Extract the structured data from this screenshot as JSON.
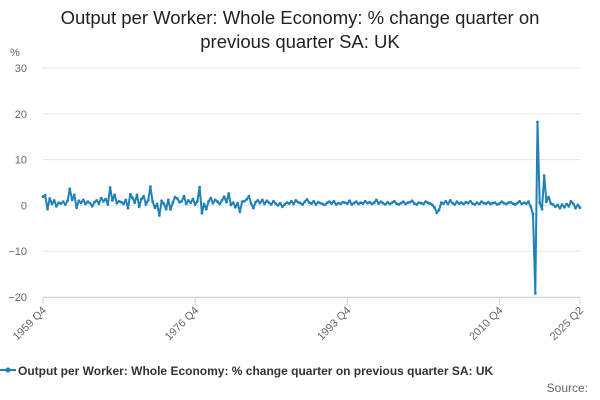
{
  "title_lines": [
    "Output per Worker: Whole Economy: % change quarter on",
    "previous quarter SA: UK"
  ],
  "source_label": "Source:",
  "colors": {
    "series": "#1f81b8",
    "grid": "#e6e6e6",
    "axis": "#ccd6eb",
    "text": "#666666"
  },
  "chart_data": {
    "type": "line",
    "title": "Output per Worker: Whole Economy: % change quarter on previous quarter SA: UK",
    "ylabel": "%",
    "ylim": [
      -20,
      30
    ],
    "yticks": [
      "30",
      "20",
      "10",
      "0",
      "−10",
      "−20"
    ],
    "ytick_values": [
      30,
      20,
      10,
      0,
      -10,
      -20
    ],
    "grid": true,
    "legend": "bottom",
    "x_start": "1959 Q4",
    "x_end": "2025 Q2",
    "xticks": [
      "1959 Q4",
      "1976 Q4",
      "1993 Q4",
      "2010 Q4",
      "2025 Q2"
    ],
    "series": [
      {
        "name": "Output per Worker: Whole Economy: % change quarter on previous quarter SA: UK",
        "values": [
          1.9,
          2.2,
          -0.8,
          1.5,
          0.3,
          1.1,
          -0.2,
          0.6,
          0.4,
          0.8,
          0.2,
          1.0,
          3.6,
          1.2,
          2.3,
          -0.5,
          1.0,
          0.6,
          1.2,
          0.3,
          0.8,
          0.5,
          -0.2,
          0.7,
          1.1,
          0.4,
          1.6,
          0.9,
          1.4,
          0.2,
          3.9,
          1.1,
          2.3,
          0.5,
          0.9,
          0.7,
          0.3,
          1.2,
          -0.6,
          2.4,
          1.7,
          0.6,
          2.3,
          -0.3,
          1.4,
          2.0,
          0.2,
          1.1,
          4.1,
          0.8,
          -0.5,
          0.3,
          -2.2,
          1.0,
          0.4,
          -0.8,
          1.2,
          -0.9,
          0.6,
          1.8,
          1.5,
          0.7,
          0.9,
          2.0,
          0.3,
          1.1,
          0.6,
          1.4,
          0.2,
          0.9,
          4.0,
          -1.7,
          0.3,
          -0.8,
          0.9,
          1.6,
          0.5,
          1.2,
          0.8,
          0.3,
          1.1,
          1.9,
          0.7,
          2.6,
          0.1,
          0.6,
          -0.4,
          0.5,
          -1.4,
          0.8,
          0.9,
          1.3,
          2.0,
          0.4,
          -0.6,
          0.7,
          1.1,
          0.5,
          1.2,
          0.3,
          1.0,
          0.6,
          0.2,
          0.9,
          0.4,
          0.0,
          0.5,
          -0.3,
          0.2,
          0.6,
          0.4,
          0.9,
          0.3,
          1.1,
          0.7,
          0.5,
          0.2,
          0.8,
          1.3,
          0.6,
          0.4,
          0.9,
          0.2,
          0.7,
          0.5,
          0.3,
          0.1,
          0.6,
          0.8,
          0.4,
          0.9,
          0.2,
          0.5,
          0.3,
          0.7,
          0.6,
          0.4,
          1.0,
          0.2,
          0.5,
          0.8,
          0.3,
          0.6,
          0.4,
          0.9,
          0.5,
          0.7,
          0.3,
          0.6,
          1.2,
          0.4,
          0.8,
          0.5,
          0.2,
          0.7,
          0.3,
          0.6,
          0.9,
          0.4,
          0.2,
          0.5,
          0.8,
          0.3,
          0.6,
          0.7,
          1.0,
          0.4,
          0.2,
          0.6,
          0.5,
          0.3,
          0.8,
          0.6,
          0.4,
          0.1,
          -0.5,
          -1.6,
          -1.0,
          0.6,
          0.4,
          0.9,
          0.3,
          1.1,
          0.5,
          0.2,
          0.8,
          0.4,
          0.6,
          0.3,
          0.7,
          0.5,
          0.9,
          0.4,
          0.2,
          0.6,
          0.3,
          0.8,
          0.5,
          0.4,
          0.7,
          0.3,
          0.5,
          0.6,
          0.2,
          0.4,
          0.8,
          0.5,
          0.3,
          0.6,
          0.7,
          0.4,
          0.2,
          0.5,
          0.9,
          0.3,
          0.6,
          0.4,
          0.8,
          -0.3,
          -1.9,
          -19.2,
          18.2,
          0.6,
          -0.8,
          6.5,
          0.8,
          1.8,
          0.4,
          0.2,
          -0.3,
          0.1,
          -0.6,
          0.2,
          -0.4,
          0.3,
          -0.2,
          0.9,
          0.4,
          -0.6,
          0.1,
          -0.5
        ]
      }
    ]
  }
}
